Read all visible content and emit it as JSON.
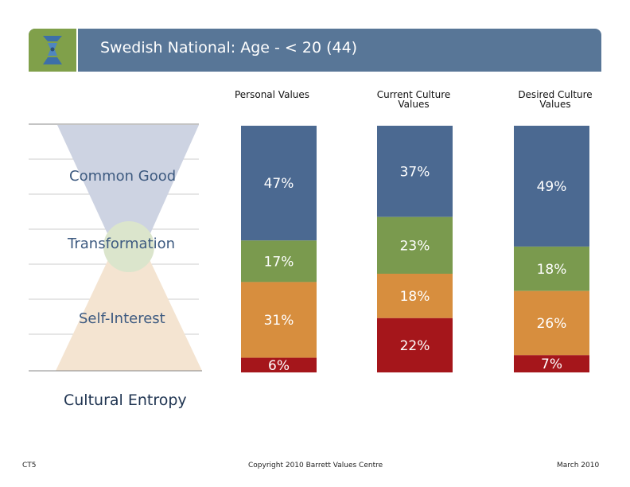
{
  "header": {
    "title": "Swedish National: Age - < 20 (44)"
  },
  "levels": {
    "common_good": "Common Good",
    "transformation": "Transformation",
    "self_interest": "Self-Interest",
    "cultural_entropy": "Cultural Entropy"
  },
  "colors": {
    "header": "#587697",
    "logo": "#80a04a",
    "common_good": "#4b6991",
    "transformation": "#7a9a4e",
    "self_interest": "#d78e3e",
    "entropy": "#a5161b"
  },
  "chart_data": {
    "type": "bar",
    "stacked": true,
    "categories": [
      "Personal Values",
      "Current Culture Values",
      "Desired Culture Values"
    ],
    "series": [
      {
        "name": "Common Good",
        "values": [
          47,
          37,
          49
        ]
      },
      {
        "name": "Transformation",
        "values": [
          17,
          23,
          18
        ]
      },
      {
        "name": "Self-Interest",
        "values": [
          31,
          18,
          26
        ]
      },
      {
        "name": "Cultural Entropy",
        "values": [
          6,
          22,
          7
        ]
      }
    ],
    "labels": [
      [
        "47%",
        "17%",
        "31%",
        "6%"
      ],
      [
        "37%",
        "23%",
        "18%",
        "22%"
      ],
      [
        "49%",
        "18%",
        "26%",
        "7%"
      ]
    ],
    "ylim": [
      0,
      100
    ]
  },
  "footer": {
    "left": "CT5",
    "center": "Copyright 2010 Barrett Values Centre",
    "right": "March 2010"
  }
}
